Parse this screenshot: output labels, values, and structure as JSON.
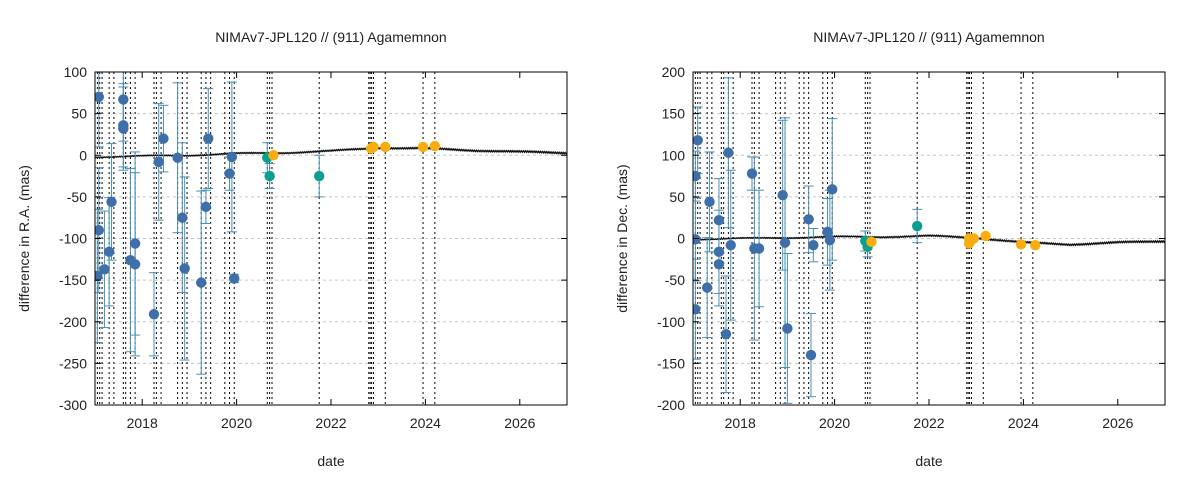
{
  "chart_data": [
    {
      "type": "scatter",
      "title": "NIMAv7-JPL120 // (911) Agamemnon",
      "xlabel": "date",
      "ylabel": "difference in R.A. (mas)",
      "xlim": [
        2017.0,
        2027.0
      ],
      "ylim": [
        -300,
        100
      ],
      "xticks": [
        2018,
        2020,
        2022,
        2024,
        2026
      ],
      "yticks": [
        100,
        50,
        0,
        -50,
        -100,
        -150,
        -200,
        -250,
        -300
      ],
      "grid": "horizontal dashed",
      "vlines": [
        2017.05,
        2017.1,
        2017.15,
        2017.3,
        2017.4,
        2017.6,
        2017.65,
        2017.75,
        2017.85,
        2018.25,
        2018.3,
        2018.4,
        2018.75,
        2018.85,
        2018.95,
        2019.25,
        2019.35,
        2019.45,
        2019.75,
        2019.85,
        2019.95,
        2020.65,
        2020.7,
        2020.75,
        2021.75,
        2022.8,
        2022.83,
        2022.86,
        2022.9,
        2023.15,
        2023.95,
        2024.2
      ],
      "model_curve": [
        [
          2017.0,
          -2
        ],
        [
          2018.0,
          -1
        ],
        [
          2019.0,
          0
        ],
        [
          2020.0,
          2
        ],
        [
          2021.0,
          3
        ],
        [
          2022.0,
          5
        ],
        [
          2023.0,
          9
        ],
        [
          2024.0,
          8
        ],
        [
          2025.0,
          6
        ],
        [
          2026.0,
          4
        ],
        [
          2027.0,
          3
        ]
      ],
      "colors": {
        "blue": "#3e6fa8",
        "teal": "#0d9e90",
        "orange": "#f8ac0e",
        "errorbar": "#4a90b5",
        "curve": "#111111",
        "vline": "#000000",
        "grid": "#c8c8c8"
      },
      "series": [
        {
          "color": "blue",
          "points": [
            {
              "x": 2017.08,
              "y": 70,
              "err": 60
            },
            {
              "x": 2017.05,
              "y": -145,
              "err": 80
            },
            {
              "x": 2017.08,
              "y": -90,
              "err": 75
            },
            {
              "x": 2017.2,
              "y": -137,
              "err": 70
            },
            {
              "x": 2017.3,
              "y": -116,
              "err": 65
            },
            {
              "x": 2017.35,
              "y": -56,
              "err": 70
            },
            {
              "x": 2017.6,
              "y": 67,
              "err": 50
            },
            {
              "x": 2017.6,
              "y": 36,
              "err": 50
            },
            {
              "x": 2017.6,
              "y": 32,
              "err": 50
            },
            {
              "x": 2017.75,
              "y": -126,
              "err": 110
            },
            {
              "x": 2017.85,
              "y": -106,
              "err": 110
            },
            {
              "x": 2017.85,
              "y": -131,
              "err": 110
            },
            {
              "x": 2018.25,
              "y": -191,
              "err": 50
            },
            {
              "x": 2018.35,
              "y": -8,
              "err": 70
            },
            {
              "x": 2018.45,
              "y": 20,
              "err": 40
            },
            {
              "x": 2018.75,
              "y": -3,
              "err": 90
            },
            {
              "x": 2018.85,
              "y": -75,
              "err": 90
            },
            {
              "x": 2018.9,
              "y": -136,
              "err": 110
            },
            {
              "x": 2019.25,
              "y": -153,
              "err": 110
            },
            {
              "x": 2019.35,
              "y": -62,
              "err": 20
            },
            {
              "x": 2019.4,
              "y": 20,
              "err": 60
            },
            {
              "x": 2019.85,
              "y": -22,
              "err": 20
            },
            {
              "x": 2019.9,
              "y": -2,
              "err": 90
            },
            {
              "x": 2019.95,
              "y": -148,
              "err": 5
            }
          ]
        },
        {
          "color": "teal",
          "points": [
            {
              "x": 2020.65,
              "y": -3,
              "err": 18
            },
            {
              "x": 2020.7,
              "y": -25,
              "err": 15
            },
            {
              "x": 2021.75,
              "y": -25,
              "err": 25
            }
          ]
        },
        {
          "color": "orange",
          "points": [
            {
              "x": 2020.78,
              "y": 0,
              "err": 0
            },
            {
              "x": 2022.85,
              "y": 8,
              "err": 0
            },
            {
              "x": 2022.9,
              "y": 10,
              "err": 0
            },
            {
              "x": 2023.15,
              "y": 10,
              "err": 0
            },
            {
              "x": 2023.95,
              "y": 10,
              "err": 0
            },
            {
              "x": 2024.2,
              "y": 11,
              "err": 0
            }
          ]
        }
      ]
    },
    {
      "type": "scatter",
      "title": "NIMAv7-JPL120 // (911) Agamemnon",
      "xlabel": "date",
      "ylabel": "difference in Dec. (mas)",
      "xlim": [
        2017.0,
        2027.0
      ],
      "ylim": [
        -200,
        200
      ],
      "xticks": [
        2018,
        2020,
        2022,
        2024,
        2026
      ],
      "yticks": [
        200,
        150,
        100,
        50,
        0,
        -50,
        -100,
        -150,
        -200
      ],
      "grid": "horizontal dashed",
      "vlines": [
        2017.05,
        2017.1,
        2017.15,
        2017.3,
        2017.4,
        2017.6,
        2017.65,
        2017.75,
        2017.85,
        2018.25,
        2018.3,
        2018.4,
        2018.75,
        2018.85,
        2018.95,
        2019.25,
        2019.35,
        2019.45,
        2019.75,
        2019.85,
        2019.95,
        2020.65,
        2020.7,
        2020.75,
        2021.75,
        2022.8,
        2022.83,
        2022.86,
        2022.9,
        2023.15,
        2023.95,
        2024.2
      ],
      "model_curve": [
        [
          2017.0,
          -1
        ],
        [
          2018.0,
          0
        ],
        [
          2019.0,
          1
        ],
        [
          2020.0,
          2
        ],
        [
          2021.0,
          2
        ],
        [
          2022.0,
          3
        ],
        [
          2023.0,
          1
        ],
        [
          2024.0,
          -5
        ],
        [
          2025.0,
          -7
        ],
        [
          2026.0,
          -5
        ],
        [
          2027.0,
          -3
        ]
      ],
      "colors": {
        "blue": "#3e6fa8",
        "teal": "#0d9e90",
        "orange": "#f8ac0e",
        "errorbar": "#4a90b5",
        "curve": "#111111",
        "vline": "#000000",
        "grid": "#c8c8c8"
      },
      "series": [
        {
          "color": "blue",
          "points": [
            {
              "x": 2017.05,
              "y": 75,
              "err": 30
            },
            {
              "x": 2017.1,
              "y": 118,
              "err": 40
            },
            {
              "x": 2017.05,
              "y": -85,
              "err": 60
            },
            {
              "x": 2017.05,
              "y": -1,
              "err": 50
            },
            {
              "x": 2017.3,
              "y": -59,
              "err": 60
            },
            {
              "x": 2017.35,
              "y": 44,
              "err": 60
            },
            {
              "x": 2017.55,
              "y": 22,
              "err": 50
            },
            {
              "x": 2017.55,
              "y": -16,
              "err": 50
            },
            {
              "x": 2017.55,
              "y": -31,
              "err": 50
            },
            {
              "x": 2017.75,
              "y": 103,
              "err": 90
            },
            {
              "x": 2017.7,
              "y": -115,
              "err": 70
            },
            {
              "x": 2017.8,
              "y": -8,
              "err": 90
            },
            {
              "x": 2018.25,
              "y": 78,
              "err": 20
            },
            {
              "x": 2018.3,
              "y": -12,
              "err": 110
            },
            {
              "x": 2018.4,
              "y": -12,
              "err": 70
            },
            {
              "x": 2018.9,
              "y": 52,
              "err": 90
            },
            {
              "x": 2018.95,
              "y": -5,
              "err": 150
            },
            {
              "x": 2019.0,
              "y": -108,
              "err": 90
            },
            {
              "x": 2019.45,
              "y": 23,
              "err": 40
            },
            {
              "x": 2019.5,
              "y": -140,
              "err": 50
            },
            {
              "x": 2019.55,
              "y": -8,
              "err": 20
            },
            {
              "x": 2019.85,
              "y": 8,
              "err": 40
            },
            {
              "x": 2019.9,
              "y": -2,
              "err": 60
            },
            {
              "x": 2019.95,
              "y": 59,
              "err": 85
            }
          ]
        },
        {
          "color": "teal",
          "points": [
            {
              "x": 2020.65,
              "y": -3,
              "err": 12
            },
            {
              "x": 2020.7,
              "y": -10,
              "err": 12
            },
            {
              "x": 2021.75,
              "y": 15,
              "err": 20
            }
          ]
        },
        {
          "color": "orange",
          "points": [
            {
              "x": 2020.78,
              "y": -4,
              "err": 0
            },
            {
              "x": 2022.85,
              "y": 0,
              "err": 0
            },
            {
              "x": 2022.85,
              "y": -6,
              "err": 0
            },
            {
              "x": 2022.95,
              "y": 0,
              "err": 0
            },
            {
              "x": 2023.2,
              "y": 3,
              "err": 0
            },
            {
              "x": 2023.95,
              "y": -7,
              "err": 0
            },
            {
              "x": 2024.25,
              "y": -8,
              "err": 0
            }
          ]
        }
      ]
    }
  ]
}
